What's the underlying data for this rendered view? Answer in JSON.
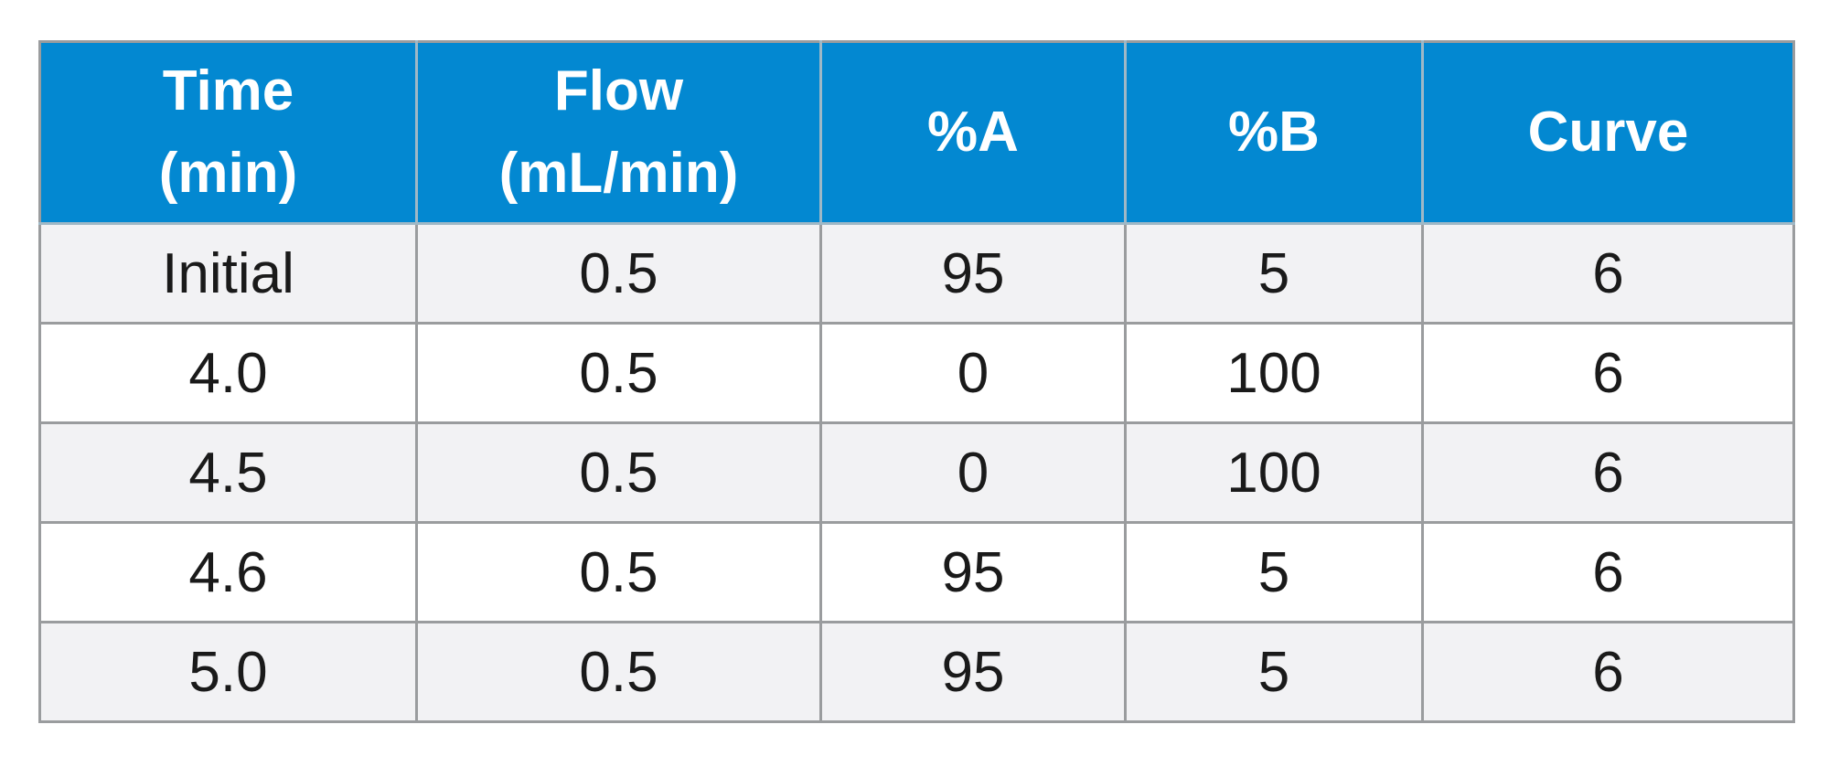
{
  "table": {
    "header": {
      "time": [
        "Time",
        "(min)"
      ],
      "flow": [
        "Flow",
        "(mL/min)"
      ],
      "pct_a": "%A",
      "pct_b": "%B",
      "curve": "Curve"
    },
    "rows": [
      {
        "time": "Initial",
        "flow": "0.5",
        "pct_a": "95",
        "pct_b": "5",
        "curve": "6"
      },
      {
        "time": "4.0",
        "flow": "0.5",
        "pct_a": "0",
        "pct_b": "100",
        "curve": "6"
      },
      {
        "time": "4.5",
        "flow": "0.5",
        "pct_a": "0",
        "pct_b": "100",
        "curve": "6"
      },
      {
        "time": "4.6",
        "flow": "0.5",
        "pct_a": "95",
        "pct_b": "5",
        "curve": "6"
      },
      {
        "time": "5.0",
        "flow": "0.5",
        "pct_a": "95",
        "pct_b": "5",
        "curve": "6"
      }
    ]
  },
  "colors": {
    "header_bg": "#0388d1",
    "header_text": "#ffffff",
    "row_shaded": "#f2f2f4",
    "row_plain": "#ffffff",
    "grid": "#9a9c9e"
  }
}
